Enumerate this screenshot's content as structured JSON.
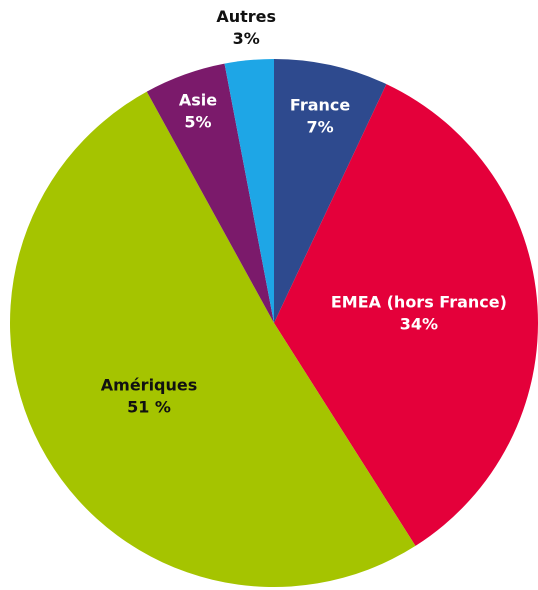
{
  "chart_data": {
    "type": "pie",
    "categories": [
      "France",
      "EMEA (hors France)",
      "Amériques",
      "Asie",
      "Autres"
    ],
    "values": [
      7,
      34,
      51,
      5,
      3
    ],
    "value_labels": [
      "7%",
      "34%",
      "51 %",
      "5%",
      "3%"
    ],
    "colors": [
      "#2e4a8e",
      "#e4003a",
      "#a5c400",
      "#7b1a6b",
      "#1ea6e6"
    ]
  }
}
